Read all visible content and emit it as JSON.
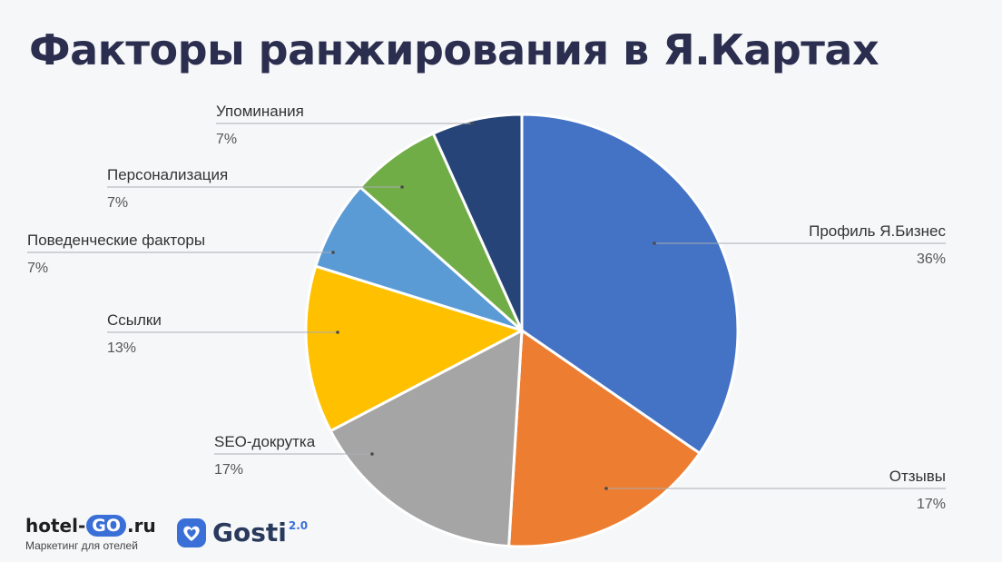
{
  "slide": {
    "title": "Факторы ранжирования в Я.Картах"
  },
  "chart_data": {
    "type": "pie",
    "title": "",
    "slices": [
      {
        "label": "Профиль Я.Бизнес",
        "value": 36,
        "value_text": "36%",
        "color": "#4472c4"
      },
      {
        "label": "Отзывы",
        "value": 17,
        "value_text": "17%",
        "color": "#ed7d31"
      },
      {
        "label": "SEO-докрутка",
        "value": 17,
        "value_text": "17%",
        "color": "#a5a5a5"
      },
      {
        "label": "Ссылки",
        "value": 13,
        "value_text": "13%",
        "color": "#ffc000"
      },
      {
        "label": "Поведенческие факторы",
        "value": 7,
        "value_text": "7%",
        "color": "#5b9bd5"
      },
      {
        "label": "Персонализация",
        "value": 7,
        "value_text": "7%",
        "color": "#70ad47"
      },
      {
        "label": "Упоминания",
        "value": 7,
        "value_text": "7%",
        "color": "#264478"
      }
    ],
    "start_angle": "12 o'clock",
    "direction": "clockwise",
    "legend": "none (callout labels)"
  },
  "logos": {
    "hotelgo": {
      "pre": "hotel-",
      "mid": "GO",
      "post": ".ru",
      "tagline": "Маркетинг для отелей"
    },
    "gosti": {
      "name": "Gosti",
      "version": "2.0",
      "color": "#3a6fd8"
    }
  }
}
